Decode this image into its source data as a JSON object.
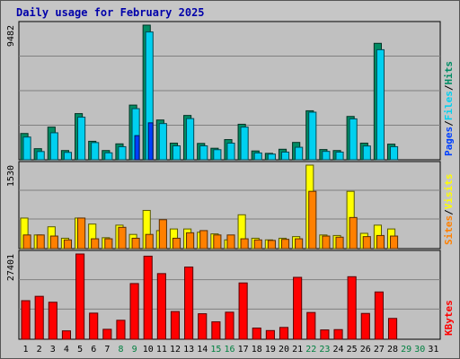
{
  "title": "Daily usage for February 2025",
  "chart_data": {
    "type": "bar",
    "title": "Daily usage for February 2025",
    "categories": [
      "1",
      "2",
      "3",
      "4",
      "5",
      "6",
      "7",
      "8",
      "9",
      "10",
      "11",
      "12",
      "13",
      "14",
      "15",
      "16",
      "17",
      "18",
      "19",
      "20",
      "21",
      "22",
      "23",
      "24",
      "25",
      "26",
      "27",
      "28",
      "29",
      "30",
      "31"
    ],
    "weekend_days": [
      "8",
      "9",
      "15",
      "16",
      "22",
      "23",
      "29",
      "30"
    ],
    "panels": [
      {
        "id": "hits-files-pages",
        "ymax_label": "9482",
        "ymax": 9482,
        "legend": [
          "Pages",
          "/",
          "Files",
          "/",
          "Hits"
        ],
        "series": [
          {
            "name": "Hits",
            "color": "#008c64",
            "values": [
              1850,
              780,
              2300,
              650,
              3250,
              1300,
              650,
              1120,
              3850,
              9482,
              2800,
              1170,
              3120,
              1150,
              810,
              1420,
              2500,
              620,
              450,
              740,
              1220,
              3450,
              720,
              650,
              3050,
              1170,
              8200,
              1100,
              0,
              0,
              0
            ]
          },
          {
            "name": "Files",
            "color": "#00d0f0",
            "values": [
              1600,
              580,
              1900,
              520,
              3000,
              1210,
              490,
              920,
              3600,
              9000,
              2550,
              980,
              2900,
              980,
              710,
              1170,
              2300,
              480,
              400,
              540,
              880,
              3350,
              590,
              540,
              2880,
              970,
              7750,
              920,
              0,
              0,
              0
            ]
          },
          {
            "name": "Pages",
            "color": "#0040ff",
            "values": [
              0,
              0,
              0,
              0,
              0,
              0,
              0,
              0,
              1700,
              2600,
              0,
              0,
              0,
              0,
              0,
              0,
              0,
              0,
              0,
              0,
              0,
              0,
              0,
              0,
              0,
              0,
              0,
              0,
              0,
              0,
              0
            ]
          }
        ]
      },
      {
        "id": "visits-sites",
        "ymax_label": "1530",
        "ymax": 1530,
        "legend": [
          "Sites",
          "/",
          "Visits"
        ],
        "series": [
          {
            "name": "Visits",
            "color": "#ffff00",
            "values": [
              560,
              250,
              400,
              190,
              560,
              450,
              200,
              430,
              260,
              700,
              330,
              360,
              360,
              300,
              270,
              160,
              620,
              190,
              160,
              190,
              220,
              1530,
              250,
              240,
              1050,
              280,
              430,
              360,
              0,
              0,
              0
            ]
          },
          {
            "name": "Sites",
            "color": "#ff8000",
            "values": [
              250,
              250,
              230,
              160,
              560,
              180,
              180,
              390,
              190,
              260,
              530,
              190,
              290,
              330,
              250,
              250,
              180,
              160,
              150,
              170,
              180,
              1050,
              230,
              210,
              570,
              220,
              240,
              230,
              0,
              0,
              0
            ]
          }
        ]
      },
      {
        "id": "kbytes",
        "ymax_label": "27401",
        "ymax": 27401,
        "legend": [
          "KBytes"
        ],
        "series": [
          {
            "name": "KBytes",
            "color": "#ff0000",
            "values": [
              12400,
              13800,
              11900,
              2700,
              27401,
              8400,
              3200,
              6100,
              17900,
              26700,
              21100,
              8900,
              23200,
              8200,
              5600,
              8700,
              18100,
              3600,
              2800,
              3800,
              19900,
              8600,
              3000,
              3100,
              20100,
              8300,
              15200,
              6700,
              0,
              0,
              0
            ]
          }
        ]
      }
    ]
  }
}
